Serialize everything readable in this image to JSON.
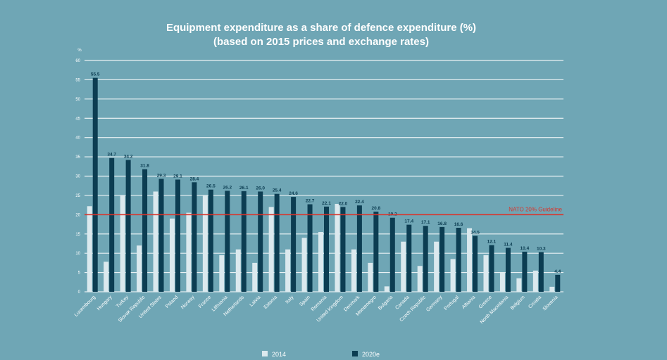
{
  "chart_data": {
    "type": "bar",
    "title": "Equipment expenditure as a share of defence expenditure (%)",
    "subtitle": "(based on 2015 prices and exchange rates)",
    "ylabel": "%",
    "ylim": [
      0,
      60
    ],
    "yticks": [
      0,
      5,
      10,
      15,
      20,
      25,
      30,
      35,
      40,
      45,
      50,
      55,
      60
    ],
    "grid": true,
    "legend_placement": "bottom-center",
    "reference_line": {
      "value": 20,
      "label": "NATO 20% Guideline",
      "color": "#d9342b"
    },
    "categories": [
      "Luxembourg",
      "Hungary",
      "Turkey",
      "Slovak Republic",
      "United States",
      "Poland",
      "Norway",
      "France",
      "Lithuania",
      "Netherlands",
      "Latvia",
      "Estonia",
      "Italy",
      "Spain",
      "Romania",
      "United Kingdom",
      "Denmark",
      "Montenegro",
      "Bulgaria",
      "Canada",
      "Czech Republic",
      "Germany",
      "Portugal",
      "Albania",
      "Greece",
      "North Macedonia",
      "Belgium",
      "Croatia",
      "Slovenia"
    ],
    "series": [
      {
        "name": "2014",
        "color": "#dbe9ee",
        "values": [
          22.2,
          7.8,
          25.0,
          12.0,
          26.0,
          19.0,
          20.5,
          25.0,
          9.5,
          11.0,
          7.5,
          22.0,
          11.0,
          14.0,
          15.5,
          22.8,
          11.0,
          7.5,
          1.4,
          13.0,
          6.7,
          13.0,
          8.5,
          16.5,
          9.5,
          5.0,
          3.5,
          5.5,
          1.3
        ]
      },
      {
        "name": "2020e",
        "color": "#0c3d52",
        "values": [
          55.5,
          34.7,
          34.2,
          31.8,
          29.3,
          29.1,
          28.4,
          26.5,
          26.2,
          26.1,
          26.0,
          25.4,
          24.6,
          22.7,
          22.1,
          22.0,
          22.4,
          20.8,
          19.2,
          17.4,
          17.1,
          16.8,
          16.6,
          14.5,
          12.1,
          11.4,
          10.4,
          10.3,
          4.4
        ]
      }
    ],
    "data_labels": [
      "55.5",
      "34.7",
      "34.2",
      "31.8",
      "29.3",
      "29.1",
      "28.4",
      "26.5",
      "26.2",
      "26.1",
      "26.0",
      "25.4",
      "24.6",
      "22.7",
      "22.1",
      "22.0",
      "22.4",
      "20.8",
      "19.2",
      "17.4",
      "17.1",
      "16.8",
      "16.6",
      "14.5",
      "12.1",
      "11.4",
      "10.4",
      "10.3",
      "4.4"
    ]
  }
}
